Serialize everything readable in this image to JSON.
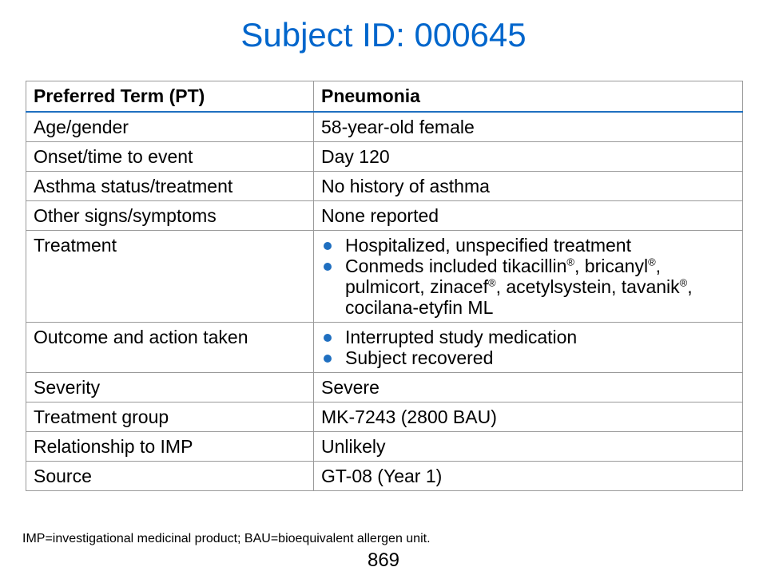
{
  "slide": {
    "title": "Subject ID: 000645",
    "footnote": "IMP=investigational medicinal product; BAU=bioequivalent allergen unit.",
    "page_number": "869"
  },
  "table": {
    "header": {
      "term": "Preferred Term (PT)",
      "value": "Pneumonia"
    },
    "rows": {
      "age_gender": {
        "label": "Age/gender",
        "value": "58-year-old female"
      },
      "onset": {
        "label": "Onset/time to event",
        "value": "Day 120"
      },
      "asthma": {
        "label": "Asthma status/treatment",
        "value": "No history of asthma"
      },
      "other_signs": {
        "label": "Other signs/symptoms",
        "value": "None reported"
      },
      "treatment": {
        "label": "Treatment",
        "bullet1": "Hospitalized, unspecified treatment",
        "conmeds": {
          "part1": "Conmeds included tikacillin",
          "part2": ", bricanyl",
          "part3": ", pulmicort, zinacef",
          "part4": ", acetylsystein, tavanik",
          "part5": ", cocilana-etyfin ML",
          "reg": "®"
        }
      },
      "outcome": {
        "label": "Outcome and action taken",
        "bullet1": "Interrupted study medication",
        "bullet2": "Subject recovered"
      },
      "severity": {
        "label": "Severity",
        "value": "Severe"
      },
      "treatment_group": {
        "label": "Treatment group",
        "value": "MK-7243 (2800 BAU)"
      },
      "relationship": {
        "label": "Relationship to IMP",
        "value": "Unlikely"
      },
      "source": {
        "label": "Source",
        "value": "GT-08 (Year 1)"
      }
    }
  },
  "colors": {
    "title": "#0066cc",
    "bullet": "#1f6fc0",
    "header_rule": "#1f6fc0",
    "border": "#9a9a9a"
  },
  "icons": {
    "bullet": "bullet-dot-icon"
  }
}
